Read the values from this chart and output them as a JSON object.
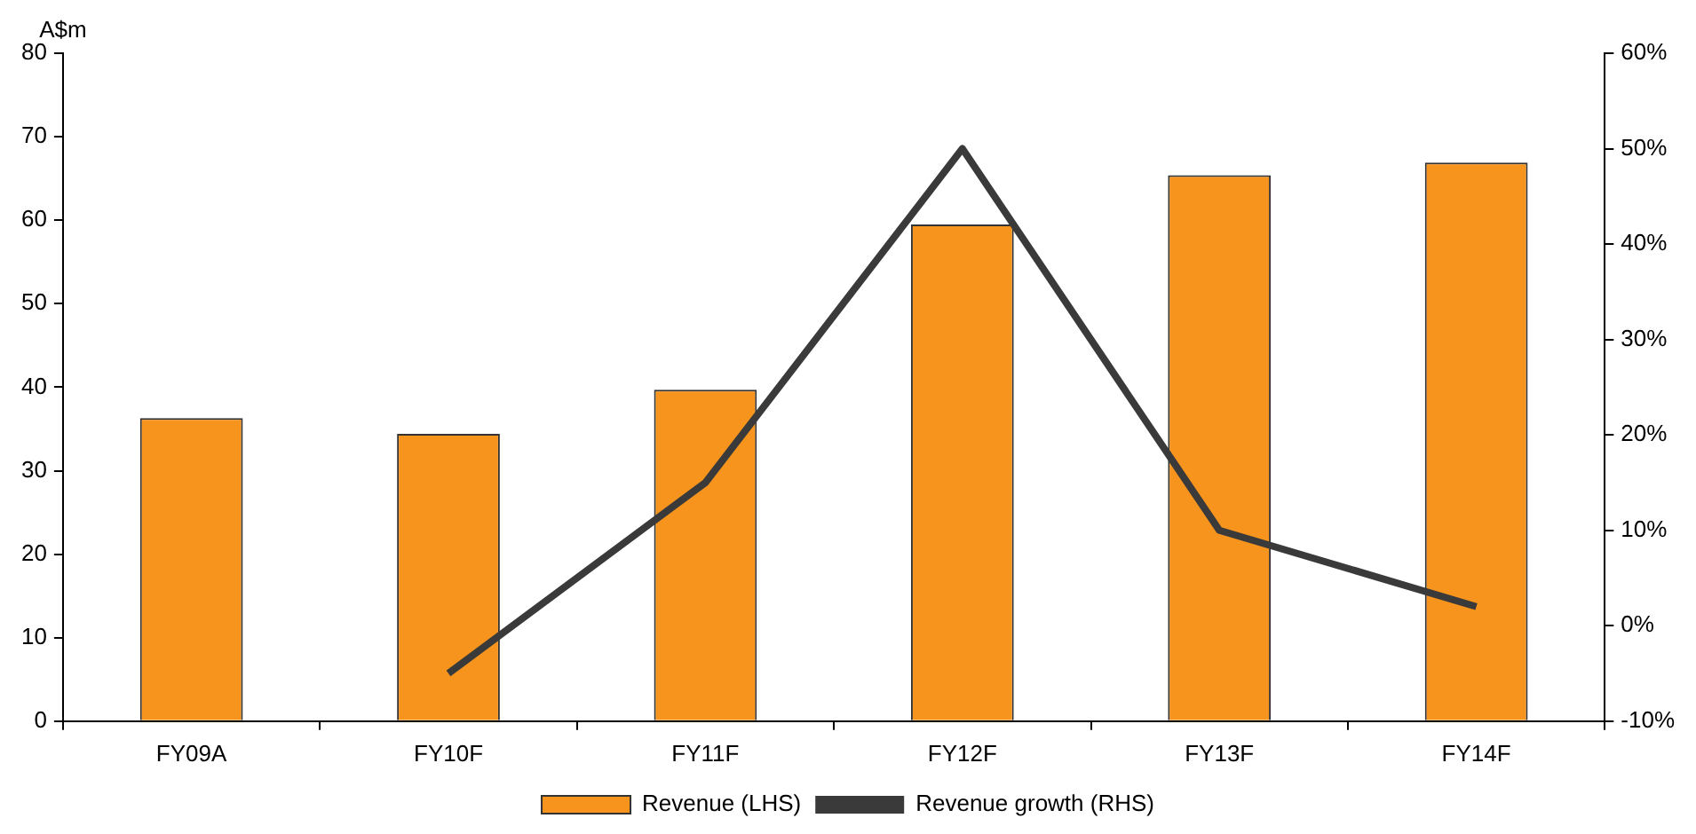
{
  "chart_data": {
    "type": "bar",
    "ylabel": "A$m",
    "categories": [
      "FY09A",
      "FY10F",
      "FY11F",
      "FY12F",
      "FY13F",
      "FY14F"
    ],
    "series": [
      {
        "name": "Revenue (LHS)",
        "color": "#f7941d",
        "values": [
          36.3,
          34.4,
          39.7,
          59.5,
          65.4,
          66.9
        ]
      },
      {
        "name": "Revenue growth (RHS)",
        "type": "line",
        "axis": "y2",
        "color": "#3a3a3a",
        "values": [
          null,
          -5,
          15,
          50,
          10,
          2
        ]
      }
    ],
    "ylim": [
      0,
      80
    ],
    "yticks": [
      0,
      10,
      20,
      30,
      40,
      50,
      60,
      70,
      80
    ],
    "y2lim": [
      -10,
      60
    ],
    "y2ticks": [
      {
        "value": -10,
        "label": "-10%"
      },
      {
        "value": 0,
        "label": "0%"
      },
      {
        "value": 10,
        "label": "10%"
      },
      {
        "value": 20,
        "label": "20%"
      },
      {
        "value": 30,
        "label": "30%"
      },
      {
        "value": 40,
        "label": "40%"
      },
      {
        "value": 50,
        "label": "50%"
      },
      {
        "value": 60,
        "label": "60%"
      }
    ],
    "grid": false,
    "legend": "bottom",
    "marker": "none",
    "line_style": "solid"
  }
}
